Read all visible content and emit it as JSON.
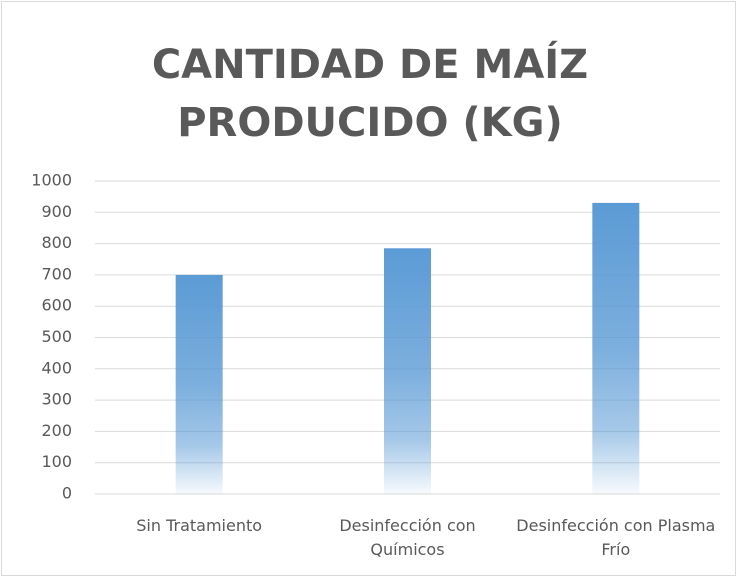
{
  "chart_data": {
    "type": "bar",
    "title": "CANTIDAD DE MAÍZ PRODUCIDO (KG)",
    "categories": [
      "Sin Tratamiento",
      "Desinfección con Químicos",
      "Desinfección con Plasma Frío"
    ],
    "values": [
      700,
      785,
      930
    ],
    "color": "#5b9bd5",
    "ylim": [
      0,
      1000
    ],
    "yticks": [
      0,
      100,
      200,
      300,
      400,
      500,
      600,
      700,
      800,
      900,
      1000
    ],
    "grid": true
  }
}
